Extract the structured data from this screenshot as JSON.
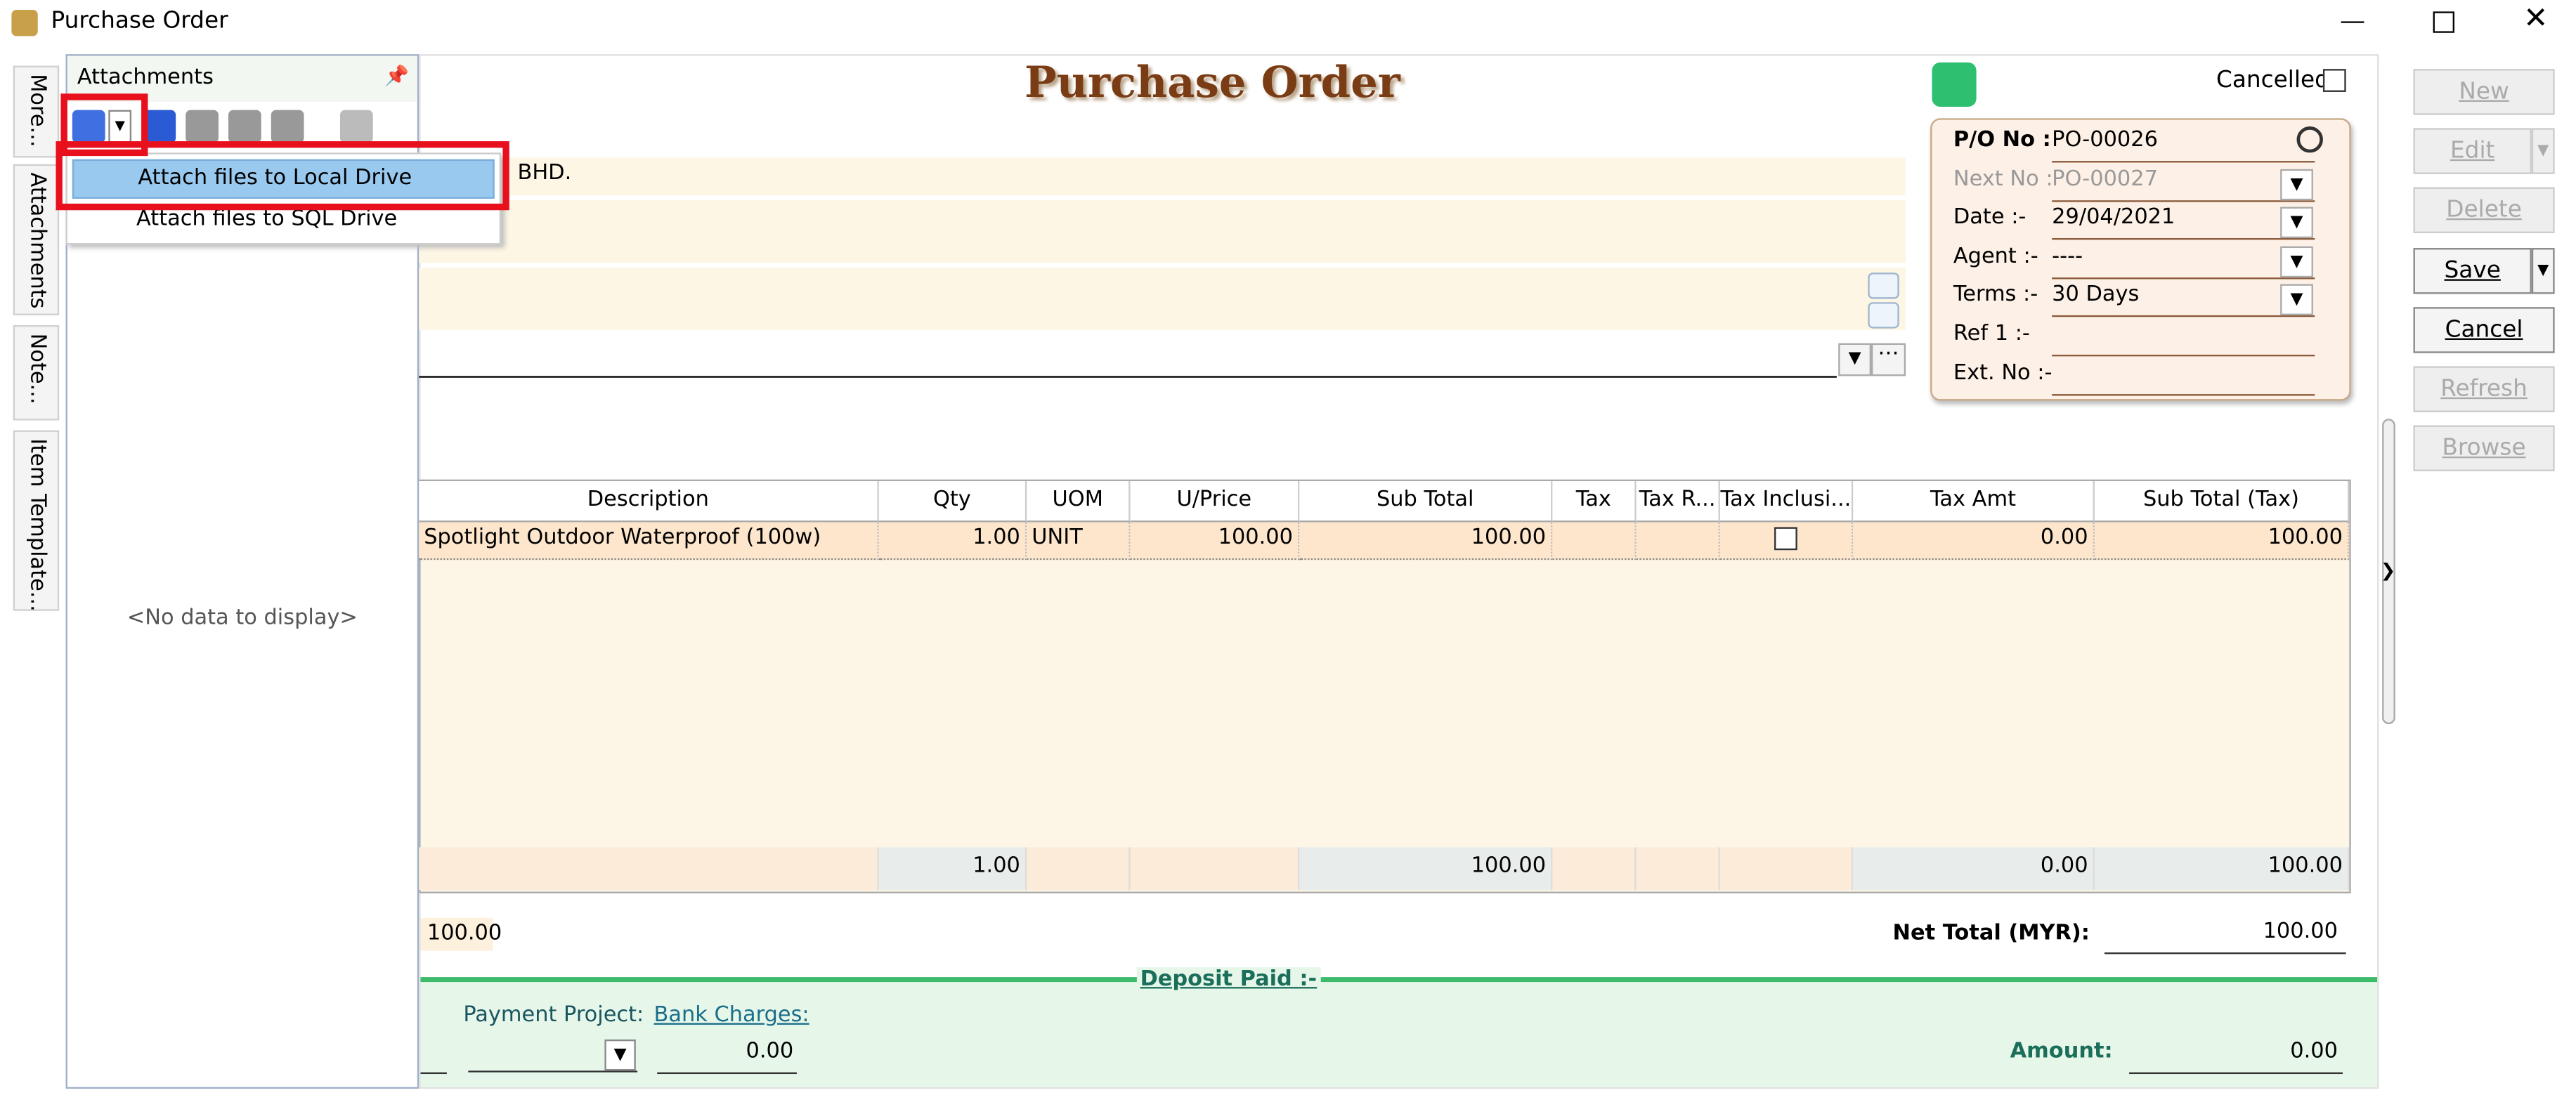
{
  "window": {
    "title": "Purchase Order"
  },
  "side_tabs": [
    "More...",
    "Attachments",
    "Note...",
    "Item Template..."
  ],
  "attachments": {
    "title": "Attachments",
    "menu": [
      "Attach files to Local Drive",
      "Attach files to SQL Drive"
    ],
    "empty": "<No data to display>"
  },
  "form": {
    "title": "Purchase Order",
    "cancelled": "Cancelled",
    "company_suffix": "BHD.",
    "fields": [
      {
        "label": "P/O No :",
        "value": "PO-00026"
      },
      {
        "label": "Next No :",
        "value": "PO-00027"
      },
      {
        "label": "Date :-",
        "value": "29/04/2021"
      },
      {
        "label": "Agent :-",
        "value": "----"
      },
      {
        "label": "Terms :-",
        "value": "30 Days"
      },
      {
        "label": "Ref 1 :-"
      },
      {
        "label": "Ext. No :-"
      }
    ]
  },
  "table": {
    "columns": [
      "Description",
      "Qty",
      "UOM",
      "U/Price",
      "Sub Total",
      "Tax",
      "Tax R...",
      "Tax Inclusi...",
      "Tax Amt",
      "Sub Total (Tax)"
    ],
    "rows": [
      {
        "description": "Spotlight Outdoor Waterproof (100w)",
        "qty": "1.00",
        "uom": "UNIT",
        "unit_price": "100.00",
        "sub_total": "100.00",
        "tax_amt": "0.00",
        "sub_total_tax": "100.00"
      }
    ],
    "footer": {
      "qty": "1.00",
      "sub_total": "100.00",
      "tax_amt": "0.00",
      "sub_total_tax": "100.00"
    }
  },
  "summary": {
    "left_amount": "100.00",
    "net_total_label": "Net Total (MYR):",
    "net_total": "100.00",
    "deposit_label": "Deposit Paid :-",
    "payment_project": "Payment Project:",
    "bank_charges": "Bank Charges:",
    "bank_charges_value": "0.00",
    "amount_label": "Amount:",
    "amount": "0.00"
  },
  "buttons": [
    {
      "label": "New",
      "enabled": false
    },
    {
      "label": "Edit",
      "enabled": false
    },
    {
      "label": "Delete",
      "enabled": false
    },
    {
      "label": "Save",
      "enabled": true
    },
    {
      "label": "Cancel",
      "enabled": true
    },
    {
      "label": "Refresh",
      "enabled": false
    },
    {
      "label": "Browse",
      "enabled": false
    }
  ]
}
